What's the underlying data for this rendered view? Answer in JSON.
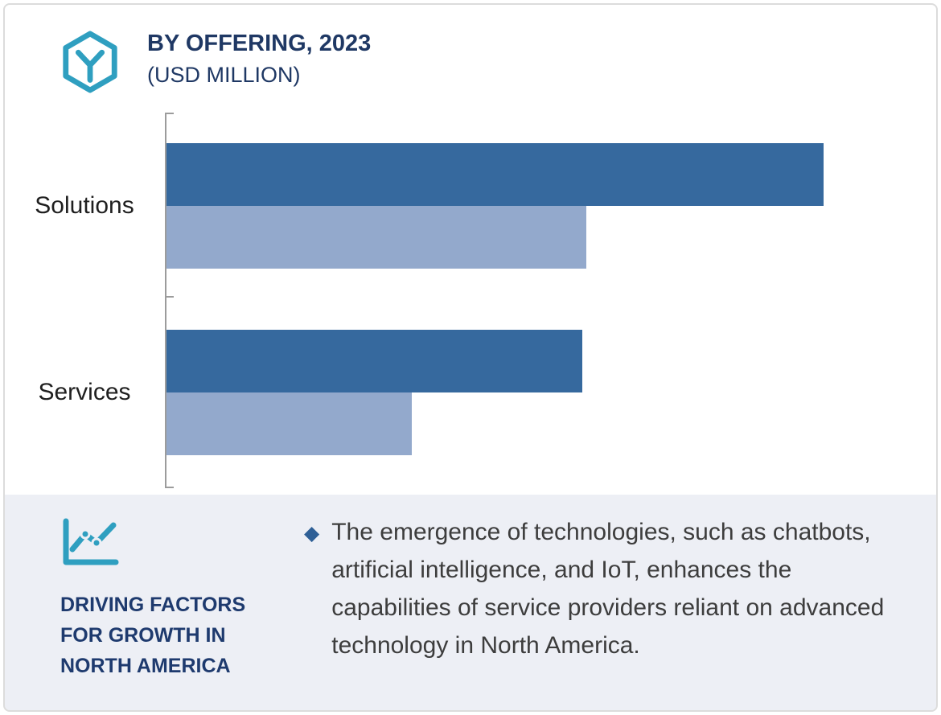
{
  "header": {
    "title": "BY OFFERING, 2023",
    "subtitle": "(USD MILLION)"
  },
  "chart_data": {
    "type": "bar",
    "orientation": "horizontal",
    "title": "BY OFFERING, 2023",
    "subtitle": "(USD MILLION)",
    "categories": [
      "Solutions",
      "Services"
    ],
    "series": [
      {
        "name": "dark-blue",
        "color": "#36699E",
        "values": [
          87.5,
          55.3
        ]
      },
      {
        "name": "light-blue",
        "color": "#93A9CC",
        "values": [
          55.9,
          32.7
        ]
      }
    ],
    "xlim": [
      0,
      100
    ],
    "grid": false,
    "legend": "none",
    "value_basis": "relative bar length as percent of plot width (no numeric labels shown in image)"
  },
  "footer": {
    "heading": "DRIVING FACTORS FOR GROWTH IN NORTH AMERICA",
    "bullet_marker": "◆",
    "bullet_text": "The emergence of technologies, such as chatbots, artificial intelligence, and IoT, enhances the capabilities of service providers reliant on advanced technology in North America."
  },
  "icons": {
    "logo": "hexagon-network-icon",
    "growth": "line-chart-icon"
  },
  "colors": {
    "bar_dark": "#36699E",
    "bar_light": "#93A9CC",
    "accent_teal": "#2F9FC0",
    "heading_navy": "#1F3864",
    "footer_background": "#EDEFF5",
    "body_text": "#3D3D3D",
    "diamond_bullet": "#2E5F96"
  }
}
